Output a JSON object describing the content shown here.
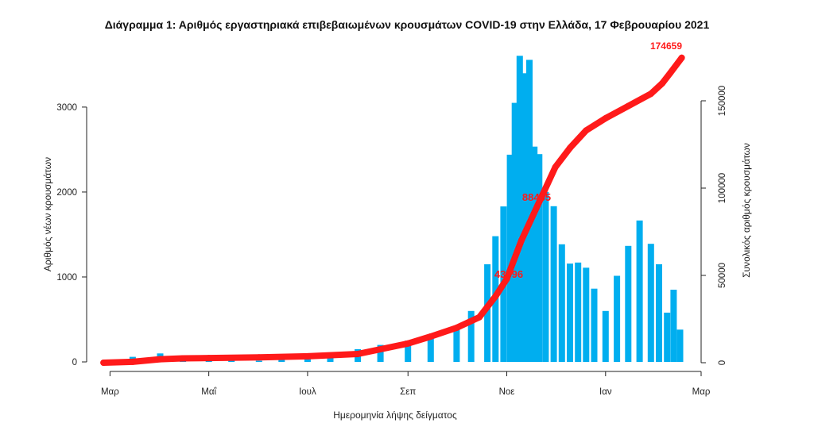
{
  "chart_data": {
    "type": "bar",
    "title": "Διάγραμμα 1: Αριθμός εργαστηριακά επιβεβαιωμένων κρουσμάτων COVID-19 στην Ελλάδα, 17 Φεβρουαρίου 2021",
    "xlabel": "Ημερομηνία λήψης δείγματος",
    "ylabel": "Αριθμός νέων κρουσμάτων",
    "ylabel_right": "Συνολικός αριθμός κρουσμάτων",
    "ylim": [
      0,
      3700
    ],
    "ylim_right": [
      0,
      174659
    ],
    "yticks": [
      "0",
      "1000",
      "2000",
      "3000"
    ],
    "yticks_right": [
      "0",
      "50000",
      "100000",
      "150000"
    ],
    "xticks": [
      "Μαρ",
      "Μαΐ",
      "Ιουλ",
      "Σεπ",
      "Νοε",
      "Ιαν",
      "Μαρ"
    ],
    "bar_color": "#00aeef",
    "line_color": "#ff1a1a",
    "series": [
      {
        "kind": "bar",
        "x": [
          "2020-03-01",
          "2020-03-15",
          "2020-04-01",
          "2020-04-15",
          "2020-05-01",
          "2020-05-15",
          "2020-06-01",
          "2020-06-15",
          "2020-07-01",
          "2020-07-15",
          "2020-08-01",
          "2020-08-15",
          "2020-09-01",
          "2020-09-15",
          "2020-10-01",
          "2020-10-10",
          "2020-10-20",
          "2020-10-25",
          "2020-10-30",
          "2020-11-03",
          "2020-11-06",
          "2020-11-09",
          "2020-11-12",
          "2020-11-15",
          "2020-11-18",
          "2020-11-21",
          "2020-11-25",
          "2020-11-30",
          "2020-12-05",
          "2020-12-10",
          "2020-12-15",
          "2020-12-20",
          "2020-12-25",
          "2021-01-01",
          "2021-01-08",
          "2021-01-15",
          "2021-01-22",
          "2021-01-29",
          "2021-02-03",
          "2021-02-08",
          "2021-02-12",
          "2021-02-16"
        ],
        "values": [
          20,
          60,
          100,
          40,
          30,
          20,
          15,
          30,
          40,
          60,
          150,
          200,
          250,
          320,
          420,
          600,
          1150,
          1480,
          1830,
          2440,
          3050,
          3604,
          3398,
          3556,
          2535,
          2446,
          2001,
          1833,
          1385,
          1158,
          1170,
          1109,
          862,
          600,
          1014,
          1366,
          1665,
          1390,
          1150,
          580,
          850,
          380
        ]
      },
      {
        "kind": "line",
        "x": [
          "2020-02-26",
          "2020-03-15",
          "2020-04-01",
          "2020-04-15",
          "2020-05-01",
          "2020-06-01",
          "2020-07-01",
          "2020-08-01",
          "2020-09-01",
          "2020-09-15",
          "2020-10-01",
          "2020-10-15",
          "2020-10-25",
          "2020-11-01",
          "2020-11-10",
          "2020-11-20",
          "2020-12-01",
          "2020-12-10",
          "2020-12-20",
          "2021-01-01",
          "2021-01-15",
          "2021-01-29",
          "2021-02-05",
          "2021-02-10",
          "2021-02-17"
        ],
        "values": [
          0,
          500,
          2000,
          2500,
          2700,
          3100,
          3700,
          5000,
          11000,
          15000,
          20000,
          26000,
          38000,
          48000,
          70000,
          90000,
          112000,
          123000,
          133000,
          140000,
          147000,
          154000,
          160000,
          166000,
          174659
        ]
      }
    ],
    "annotations": [
      "174659",
      "88465",
      "43896"
    ]
  }
}
